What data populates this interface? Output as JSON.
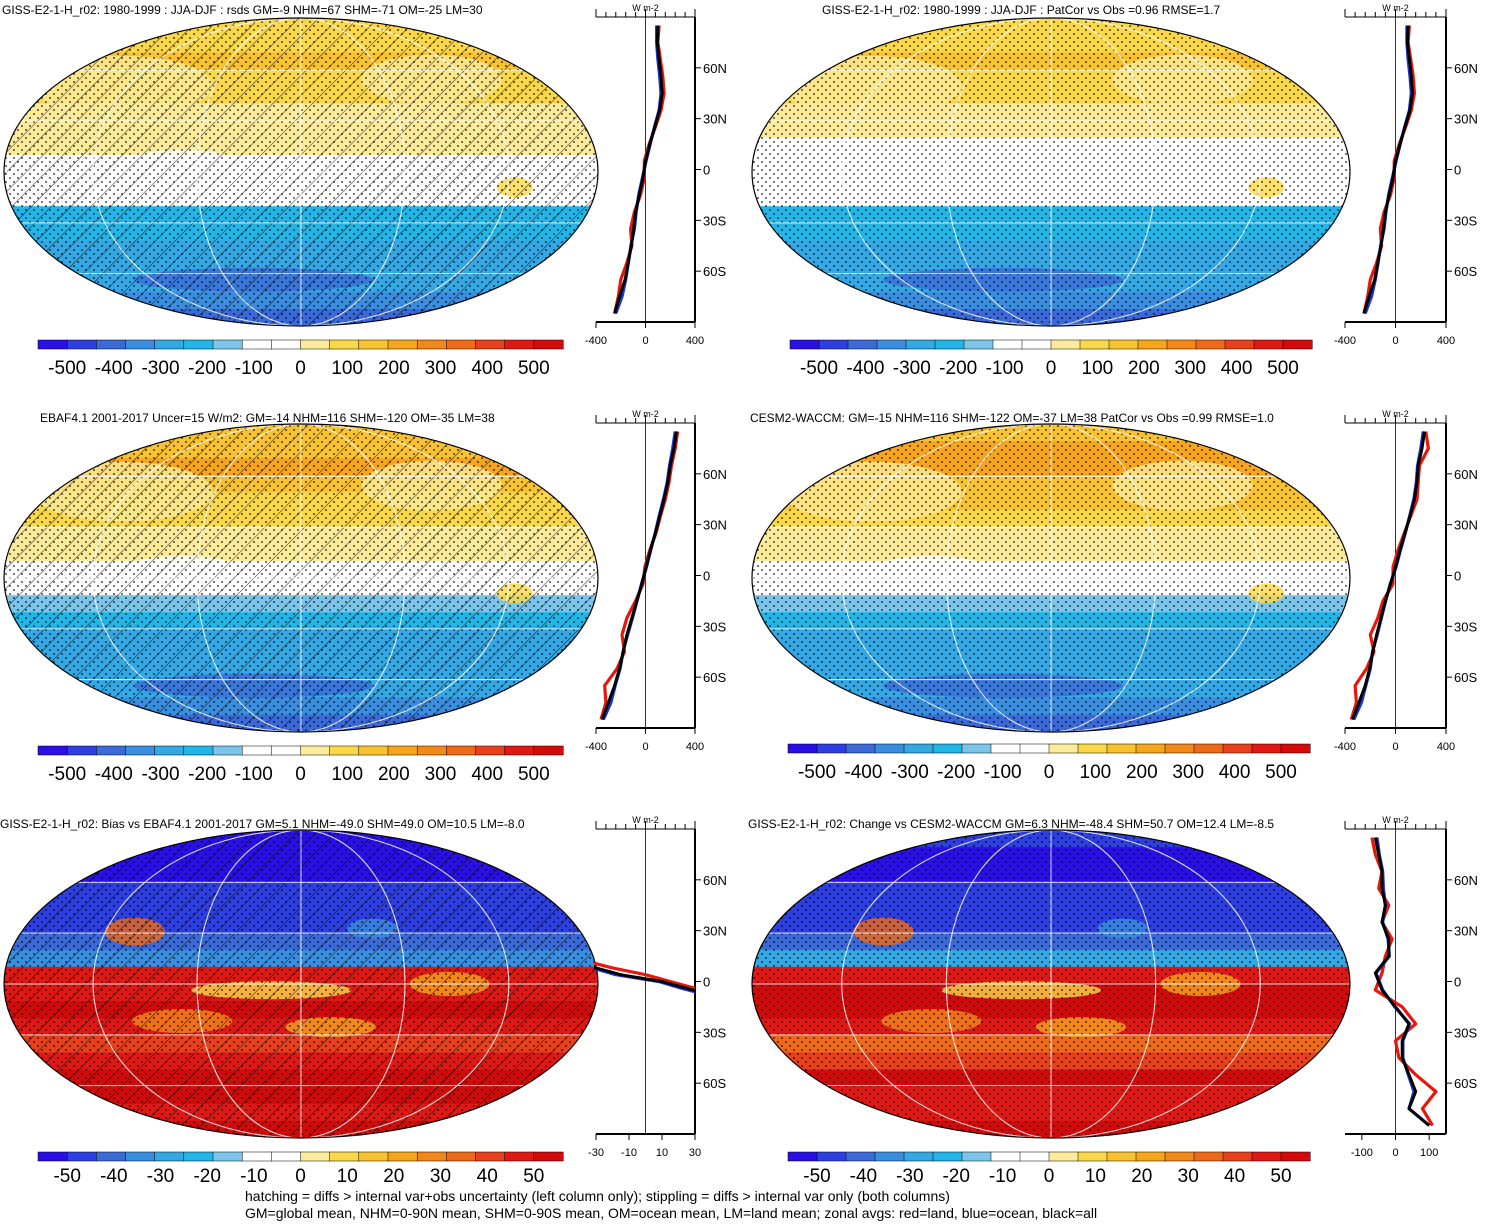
{
  "footnote": {
    "line1": "hatching = diffs > internal var+obs uncertainty (left column only); stippling = diffs > internal var only (both columns)",
    "line2": "GM=global mean, NHM=0-90N mean, SHM=0-90S mean, OM=ocean mean, LM=land mean; zonal avgs: red=land, blue=ocean, black=all"
  },
  "colors": {
    "land": "#e8170e",
    "ocean": "#1b35d8",
    "all": "#000000",
    "palette": [
      "#2a0fe6",
      "#2d3fe0",
      "#3b6ad8",
      "#3a8ee0",
      "#33a8e4",
      "#22b6e8",
      "#7cc5ea",
      "#ffffff",
      "#ffffff",
      "#fbeb9a",
      "#fbd84a",
      "#f9c230",
      "#f7a51c",
      "#f2871a",
      "#ef6a18",
      "#e8401a",
      "#e01814",
      "#d20a0a"
    ]
  },
  "chart_data": [
    {
      "type": "heatmap",
      "title": "GISS-E2-1-H_r02: 1980-1999 : JJA-DJF : rsds GM=-9 NHM=67 SHM=-71 OM=-25 LM=30",
      "colorbar_ticks": [
        "-500",
        "-400",
        "-300",
        "-200",
        "-100",
        "0",
        "100",
        "200",
        "300",
        "400",
        "500"
      ],
      "zonal_units": "W m-2",
      "zonal_xticks": [
        "-400",
        "0",
        "400"
      ],
      "lat_ticks": [
        "60N",
        "30N",
        "0",
        "30S",
        "60S"
      ],
      "xlim": [
        -400,
        400
      ],
      "hatching": true,
      "stippling": true,
      "zonal_lat": [
        85,
        75,
        65,
        55,
        45,
        35,
        25,
        15,
        5,
        -5,
        -15,
        -25,
        -35,
        -45,
        -55,
        -65,
        -75,
        -85
      ],
      "zonal_all": [
        100,
        95,
        110,
        125,
        135,
        115,
        75,
        35,
        0,
        -20,
        -50,
        -80,
        -95,
        -115,
        -140,
        -165,
        -210,
        -250
      ],
      "zonal_land": [
        110,
        100,
        120,
        140,
        150,
        125,
        80,
        30,
        -10,
        -10,
        -40,
        -90,
        -120,
        -110,
        -150,
        -200,
        -220,
        -250
      ],
      "zonal_ocean": [
        90,
        90,
        100,
        115,
        125,
        110,
        72,
        38,
        5,
        -25,
        -55,
        -75,
        -90,
        -118,
        -138,
        -160,
        -190,
        -240
      ]
    },
    {
      "type": "heatmap",
      "title": "GISS-E2-1-H_r02: 1980-1999 : JJA-DJF : PatCor vs Obs =0.96 RMSE=1.7",
      "colorbar_ticks": [
        "-500",
        "-400",
        "-300",
        "-200",
        "-100",
        "0",
        "100",
        "200",
        "300",
        "400",
        "500"
      ],
      "zonal_units": "W m-2",
      "zonal_xticks": [
        "-400",
        "0",
        "400"
      ],
      "lat_ticks": [
        "60N",
        "30N",
        "0",
        "30S",
        "60S"
      ],
      "xlim": [
        -400,
        400
      ],
      "hatching": false,
      "stippling": true,
      "zonal_lat": [
        85,
        75,
        65,
        55,
        45,
        35,
        25,
        15,
        5,
        -5,
        -15,
        -25,
        -35,
        -45,
        -55,
        -65,
        -75,
        -85
      ],
      "zonal_all": [
        100,
        95,
        110,
        125,
        135,
        115,
        75,
        35,
        0,
        -20,
        -50,
        -80,
        -95,
        -115,
        -140,
        -165,
        -210,
        -250
      ],
      "zonal_land": [
        110,
        100,
        120,
        140,
        150,
        125,
        80,
        30,
        -10,
        -10,
        -40,
        -90,
        -120,
        -110,
        -150,
        -200,
        -220,
        -250
      ],
      "zonal_ocean": [
        90,
        90,
        100,
        115,
        125,
        110,
        72,
        38,
        5,
        -25,
        -55,
        -75,
        -90,
        -118,
        -138,
        -160,
        -190,
        -240
      ]
    },
    {
      "type": "heatmap",
      "title": "EBAF4.1 2001-2017 Uncer=15 W/m2: GM=-14 NHM=116 SHM=-120 OM=-35 LM=38",
      "colorbar_ticks": [
        "-500",
        "-400",
        "-300",
        "-200",
        "-100",
        "0",
        "100",
        "200",
        "300",
        "400",
        "500"
      ],
      "zonal_units": "W m-2",
      "zonal_xticks": [
        "-400",
        "0",
        "400"
      ],
      "lat_ticks": [
        "60N",
        "30N",
        "0",
        "30S",
        "60S"
      ],
      "xlim": [
        -400,
        400
      ],
      "hatching": true,
      "stippling": true,
      "zonal_lat": [
        85,
        75,
        65,
        55,
        45,
        35,
        25,
        15,
        5,
        -5,
        -15,
        -25,
        -35,
        -45,
        -55,
        -65,
        -75,
        -85
      ],
      "zonal_all": [
        250,
        230,
        200,
        180,
        150,
        115,
        80,
        40,
        5,
        -30,
        -70,
        -110,
        -150,
        -180,
        -210,
        -250,
        -300,
        -350
      ],
      "zonal_land": [
        260,
        240,
        210,
        190,
        160,
        120,
        85,
        35,
        -5,
        -20,
        -80,
        -150,
        -190,
        -170,
        -230,
        -330,
        -320,
        -360
      ],
      "zonal_ocean": [
        240,
        220,
        195,
        175,
        145,
        110,
        78,
        42,
        8,
        -32,
        -68,
        -105,
        -145,
        -182,
        -205,
        -245,
        -280,
        -340
      ]
    },
    {
      "type": "heatmap",
      "title": "CESM2-WACCM: GM=-15 NHM=116 SHM=-122 OM=-37 LM=38 PatCor vs Obs =0.99 RMSE=1.0",
      "colorbar_ticks": [
        "-500",
        "-400",
        "-300",
        "-200",
        "-100",
        "0",
        "100",
        "200",
        "300",
        "400",
        "500"
      ],
      "zonal_units": "W m-2",
      "zonal_xticks": [
        "-400",
        "0",
        "400"
      ],
      "lat_ticks": [
        "60N",
        "30N",
        "0",
        "30S",
        "60S"
      ],
      "xlim": [
        -400,
        400
      ],
      "hatching": false,
      "stippling": true,
      "zonal_lat": [
        85,
        75,
        65,
        55,
        45,
        35,
        25,
        15,
        5,
        -5,
        -15,
        -25,
        -35,
        -45,
        -55,
        -65,
        -75,
        -85
      ],
      "zonal_all": [
        230,
        210,
        180,
        170,
        150,
        115,
        75,
        35,
        0,
        -40,
        -80,
        -115,
        -150,
        -180,
        -205,
        -240,
        -290,
        -340
      ],
      "zonal_land": [
        240,
        260,
        190,
        180,
        170,
        120,
        70,
        20,
        -20,
        -20,
        -100,
        -140,
        -200,
        -170,
        -230,
        -320,
        -310,
        -350
      ],
      "zonal_ocean": [
        220,
        200,
        175,
        165,
        145,
        112,
        78,
        40,
        5,
        -42,
        -78,
        -112,
        -145,
        -182,
        -200,
        -235,
        -270,
        -330
      ]
    },
    {
      "type": "heatmap",
      "title": "GISS-E2-1-H_r02: Bias vs EBAF4.1 2001-2017 GM=5.1 NHM=-49.0 SHM=49.0 OM=10.5 LM=-8.0",
      "colorbar_ticks": [
        "-50",
        "-40",
        "-30",
        "-20",
        "-10",
        "0",
        "10",
        "20",
        "30",
        "40",
        "50"
      ],
      "zonal_units": "W m-2",
      "zonal_xticks": [
        "-30",
        "-10",
        "10",
        "30"
      ],
      "lat_ticks": [
        "60N",
        "30N",
        "0",
        "30S",
        "60S"
      ],
      "xlim": [
        -30,
        30
      ],
      "hatching": true,
      "stippling": true,
      "zonal_lat": [
        12,
        8,
        4,
        0,
        -4,
        -8
      ],
      "zonal_all": [
        -38,
        -30,
        -15,
        10,
        25,
        40
      ],
      "zonal_land": [
        -36,
        -20,
        0,
        15,
        30,
        45
      ],
      "zonal_ocean": [
        -39,
        -32,
        -18,
        8,
        22,
        38
      ]
    },
    {
      "type": "heatmap",
      "title": "GISS-E2-1-H_r02: Change vs CESM2-WACCM GM=6.3 NHM=-48.4 SHM=50.7 OM=12.4 LM=-8.5",
      "colorbar_ticks": [
        "-50",
        "-40",
        "-30",
        "-20",
        "-10",
        "0",
        "10",
        "20",
        "30",
        "40",
        "50"
      ],
      "zonal_units": "W m-2",
      "zonal_xticks": [
        "-100",
        "0",
        "100"
      ],
      "lat_ticks": [
        "60N",
        "30N",
        "0",
        "30S",
        "60S"
      ],
      "xlim": [
        -150,
        150
      ],
      "hatching": false,
      "stippling": true,
      "zonal_lat": [
        85,
        75,
        65,
        55,
        45,
        35,
        25,
        15,
        5,
        -5,
        -15,
        -25,
        -35,
        -45,
        -55,
        -65,
        -75,
        -85
      ],
      "zonal_all": [
        -60,
        -50,
        -40,
        -40,
        -30,
        -40,
        -20,
        -20,
        -60,
        -40,
        0,
        40,
        20,
        20,
        40,
        60,
        40,
        100
      ],
      "zonal_land": [
        -70,
        -60,
        -40,
        -50,
        -20,
        -40,
        -10,
        -30,
        -40,
        -60,
        20,
        60,
        0,
        10,
        60,
        120,
        80,
        110
      ],
      "zonal_ocean": [
        -55,
        -48,
        -38,
        -36,
        -30,
        -38,
        -22,
        -18,
        -58,
        -38,
        -2,
        42,
        22,
        22,
        38,
        55,
        40,
        100
      ]
    }
  ]
}
